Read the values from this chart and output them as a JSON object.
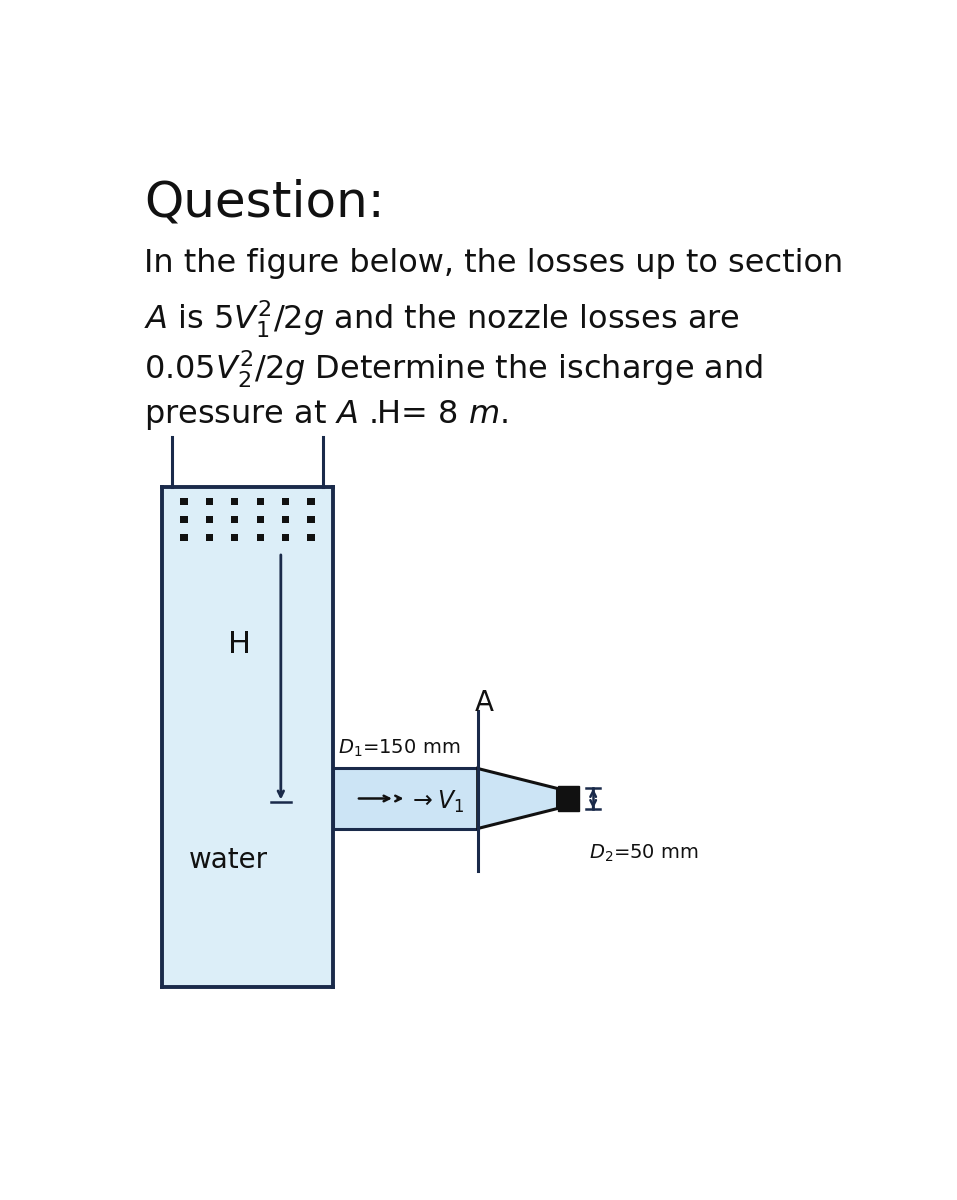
{
  "title": "Question:",
  "title_fontsize": 36,
  "body_fontsize": 23,
  "bg_color": "#ffffff",
  "tank_fill_color": "#dceef8",
  "tank_border_color": "#1a2a4a",
  "hatch_color": "#111111",
  "pipe_fill_color": "#cce4f5",
  "pipe_border_color": "#1a2a4a",
  "nozzle_fill_color": "#cce4f5",
  "nozzle_border_color": "#111111",
  "outlet_color": "#111111",
  "text_color": "#111111",
  "label_H": "H",
  "label_A": "A",
  "label_D1": "$D_1$=150 mm",
  "label_D2": "$D_2$=50 mm",
  "label_water": "water",
  "line1": "In the figure below, the losses up to section",
  "line2a": "A is 5",
  "line2b": "V",
  "line2c": "/2g and the nozzle losses are",
  "line3a": "0.05",
  "line3b": "V",
  "line3c": "/2g Determine the ischarge and",
  "line4": "pressure at A .H= 8 ",
  "line4b": "m",
  "line4c": "."
}
